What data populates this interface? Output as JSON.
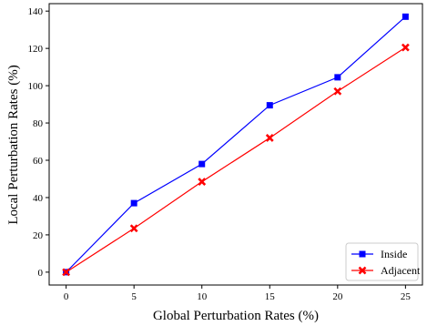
{
  "chart_data": {
    "type": "line",
    "title": "",
    "xlabel": "Global Perturbation Rates (%)",
    "ylabel": "Local Perturbation Rates (%)",
    "x": [
      0,
      5,
      10,
      15,
      20,
      25
    ],
    "xticks": [
      0,
      5,
      10,
      15,
      20,
      25
    ],
    "yticks": [
      0,
      20,
      40,
      60,
      80,
      100,
      120,
      140
    ],
    "xlim": [
      -1.25,
      26.25
    ],
    "ylim": [
      -6.9,
      144
    ],
    "grid": false,
    "legend_position": "lower-right",
    "series": [
      {
        "name": "Inside",
        "color": "#0000ff",
        "marker": "square",
        "values": [
          0,
          37,
          58,
          89.5,
          104.5,
          137
        ]
      },
      {
        "name": "Adjacent",
        "color": "#ff0000",
        "marker": "x",
        "values": [
          0,
          23.5,
          48.5,
          72,
          97,
          120.5
        ]
      }
    ]
  }
}
